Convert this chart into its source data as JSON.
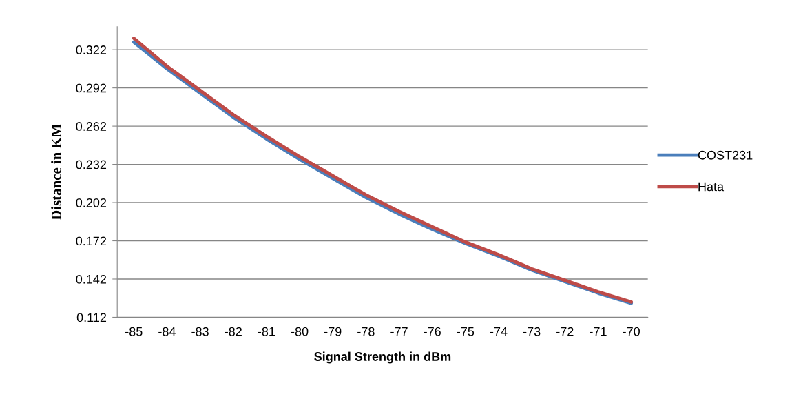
{
  "chart_data": {
    "type": "line",
    "xlabel": "Signal Strength in dBm",
    "ylabel": "Distance in KM",
    "categories": [
      "-85",
      "-84",
      "-83",
      "-82",
      "-81",
      "-80",
      "-79",
      "-78",
      "-77",
      "-76",
      "-75",
      "-74",
      "-73",
      "-72",
      "-71",
      "-70"
    ],
    "series": [
      {
        "name": "COST231",
        "color": "#4a7ebb",
        "values": [
          0.328,
          0.307,
          0.288,
          0.269,
          0.252,
          0.236,
          0.221,
          0.206,
          0.193,
          0.181,
          0.17,
          0.16,
          0.149,
          0.14,
          0.131,
          0.123
        ]
      },
      {
        "name": "Hata",
        "color": "#be4b48",
        "values": [
          0.331,
          0.309,
          0.29,
          0.271,
          0.254,
          0.238,
          0.223,
          0.208,
          0.195,
          0.183,
          0.171,
          0.161,
          0.15,
          0.141,
          0.132,
          0.124
        ]
      }
    ],
    "ylim": [
      0.112,
      0.34
    ],
    "yticks": [
      0.112,
      0.142,
      0.172,
      0.202,
      0.232,
      0.262,
      0.292,
      0.322
    ],
    "grid": "y",
    "legend": "right",
    "marker": "none",
    "line_style": "solid"
  }
}
